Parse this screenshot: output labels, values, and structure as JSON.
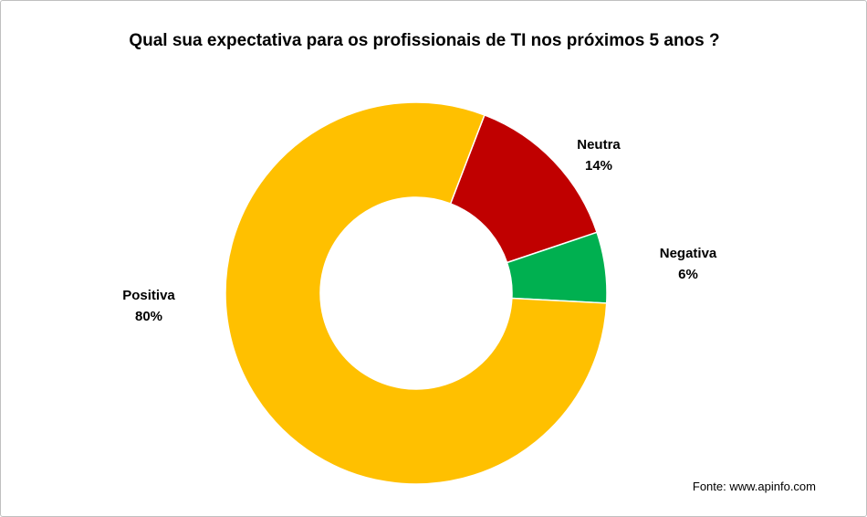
{
  "chart_data": {
    "type": "pie",
    "donut": true,
    "title": "Qual sua expectativa para os profissionais de TI nos próximos 5 anos ?",
    "slices": [
      {
        "label": "Neutra",
        "value": 14,
        "value_label": "14%",
        "color": "#C00000"
      },
      {
        "label": "Negativa",
        "value": 6,
        "value_label": "6%",
        "color": "#00B050"
      },
      {
        "label": "Positiva",
        "value": 80,
        "value_label": "80%",
        "color": "#FFC000"
      }
    ],
    "legend": "none"
  },
  "footer": {
    "source": "Fonte: www.apinfo.com"
  }
}
